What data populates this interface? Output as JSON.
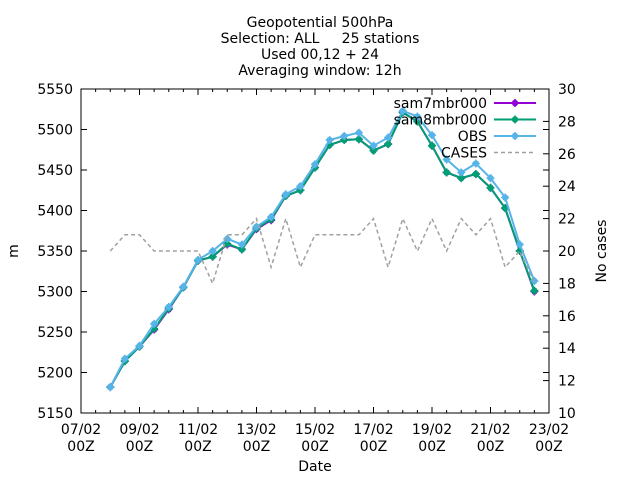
{
  "chart_data": {
    "type": "line",
    "title": [
      "Geopotential 500hPa",
      "Selection: ALL     25 stations",
      "Used 00,12 + 24",
      "Averaging window: 12h"
    ],
    "xlabel": "Date",
    "ylabel": "m",
    "y2label": "No cases",
    "xlim": [
      "07/02 00Z",
      "23/02 00Z"
    ],
    "ylim": [
      5150,
      5550
    ],
    "y2lim": [
      10,
      30
    ],
    "grid": false,
    "legend_position": "top-right",
    "x_ticks": [
      {
        "l1": "07/02",
        "l2": "00Z"
      },
      {
        "l1": "09/02",
        "l2": "00Z"
      },
      {
        "l1": "11/02",
        "l2": "00Z"
      },
      {
        "l1": "13/02",
        "l2": "00Z"
      },
      {
        "l1": "15/02",
        "l2": "00Z"
      },
      {
        "l1": "17/02",
        "l2": "00Z"
      },
      {
        "l1": "19/02",
        "l2": "00Z"
      },
      {
        "l1": "21/02",
        "l2": "00Z"
      },
      {
        "l1": "23/02",
        "l2": "00Z"
      }
    ],
    "y_ticks": [
      "5150",
      "5200",
      "5250",
      "5300",
      "5350",
      "5400",
      "5450",
      "5500",
      "5550"
    ],
    "y2_ticks": [
      "10",
      "12",
      "14",
      "16",
      "18",
      "20",
      "22",
      "24",
      "26",
      "28",
      "30"
    ],
    "x": [
      "08/02 00Z",
      "08/02 12Z",
      "09/02 00Z",
      "09/02 12Z",
      "10/02 00Z",
      "10/02 12Z",
      "11/02 00Z",
      "11/02 12Z",
      "12/02 00Z",
      "12/02 12Z",
      "13/02 00Z",
      "13/02 12Z",
      "14/02 00Z",
      "14/02 12Z",
      "15/02 00Z",
      "15/02 12Z",
      "16/02 00Z",
      "16/02 12Z",
      "17/02 00Z",
      "17/02 12Z",
      "18/02 00Z",
      "18/02 12Z",
      "19/02 00Z",
      "19/02 12Z",
      "20/02 00Z",
      "20/02 12Z",
      "21/02 00Z",
      "21/02 12Z",
      "22/02 00Z",
      "22/02 12Z"
    ],
    "series": [
      {
        "name": "sam7mbr000",
        "axis": "y1",
        "color": "#9400d3",
        "marker": "plus",
        "values": [
          5182,
          5214,
          5232,
          5253,
          5278,
          5305,
          5338,
          5343,
          5358,
          5352,
          5377,
          5388,
          5418,
          5425,
          5453,
          5481,
          5487,
          5488,
          5474,
          5482,
          5521,
          5510,
          5480,
          5447,
          5440,
          5445,
          5428,
          5403,
          5350,
          5300
        ]
      },
      {
        "name": "sam8mbr000",
        "axis": "y1",
        "color": "#009e73",
        "marker": "plus",
        "values": [
          5182,
          5214,
          5232,
          5254,
          5279,
          5305,
          5338,
          5343,
          5359,
          5352,
          5378,
          5389,
          5418,
          5425,
          5453,
          5481,
          5487,
          5488,
          5474,
          5482,
          5521,
          5510,
          5480,
          5447,
          5440,
          5445,
          5428,
          5403,
          5350,
          5301
        ]
      },
      {
        "name": "OBS",
        "axis": "y1",
        "color": "#56b4e9",
        "marker": "plus",
        "values": [
          5182,
          5217,
          5233,
          5260,
          5281,
          5306,
          5339,
          5350,
          5365,
          5358,
          5380,
          5392,
          5420,
          5430,
          5457,
          5487,
          5492,
          5496,
          5480,
          5490,
          5523,
          5516,
          5493,
          5463,
          5447,
          5458,
          5440,
          5416,
          5358,
          5313
        ]
      },
      {
        "name": "CASES",
        "axis": "y2",
        "color": "#a0a0a0",
        "dash": true,
        "values": [
          20,
          21,
          21,
          20,
          20,
          20,
          20,
          18,
          21,
          21,
          22,
          19,
          22,
          19,
          21,
          21,
          21,
          21,
          22,
          19,
          22,
          20,
          22,
          20,
          22,
          21,
          22,
          19,
          20,
          18
        ]
      }
    ]
  }
}
